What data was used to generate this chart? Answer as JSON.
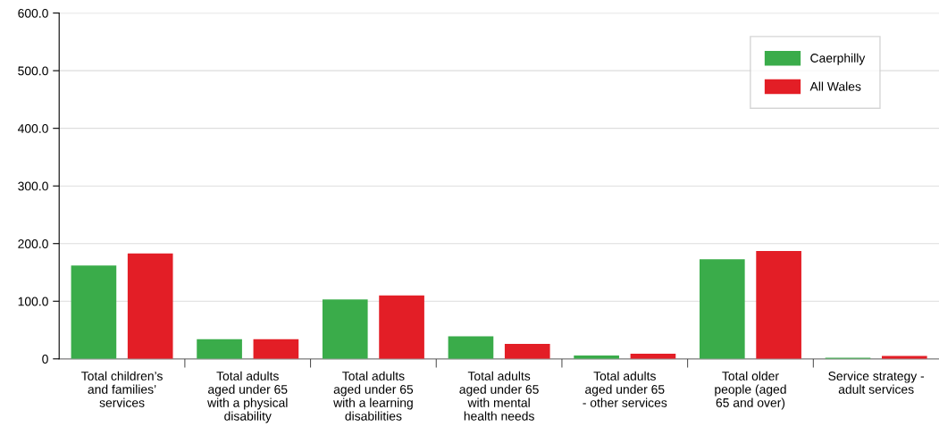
{
  "chart_data": {
    "type": "bar",
    "categories": [
      "Total children’s\nand families’\nservices",
      "Total adults\naged under 65\nwith a physical\ndisability",
      "Total adults\naged under 65\nwith a learning\ndisabilities",
      "Total adults\naged under 65\nwith mental\nhealth needs",
      "Total adults\naged under 65\n- other services",
      "Total older\npeople (aged\n65 and over)",
      "Service strategy -\nadult services"
    ],
    "series": [
      {
        "name": "Caerphilly",
        "color": "#3aac4a",
        "values": [
          162,
          34,
          103,
          39,
          6,
          173,
          2
        ]
      },
      {
        "name": "All Wales",
        "color": "#e31e26",
        "values": [
          183,
          34,
          110,
          26,
          9,
          187,
          5
        ]
      }
    ],
    "ylim": [
      0,
      600
    ],
    "yticks": [
      0,
      {
        "value": 100,
        "label": "100.0"
      },
      {
        "value": 200,
        "label": "200.0"
      },
      {
        "value": 300,
        "label": "300.0"
      },
      {
        "value": 400,
        "label": "400.0"
      },
      {
        "value": 500,
        "label": "500.0"
      },
      {
        "value": 600,
        "label": "600.0"
      }
    ],
    "grid": "y",
    "legend": "top right"
  }
}
